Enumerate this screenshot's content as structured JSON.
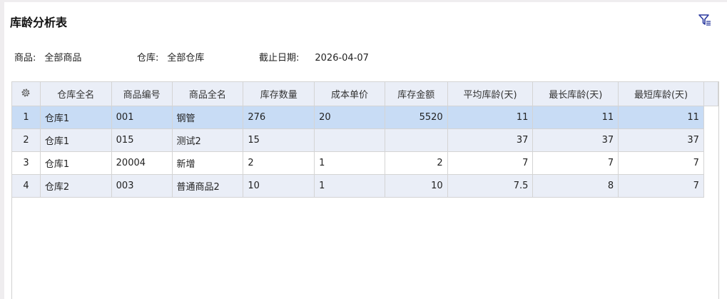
{
  "header": {
    "title": "库龄分析表",
    "filter_icon": "filter-list-icon",
    "accent": "#2b3a9f"
  },
  "criteria": [
    {
      "label": "商品:",
      "value": "全部商品"
    },
    {
      "label": "仓库:",
      "value": "全部仓库"
    },
    {
      "label": "截止日期:",
      "value": "2026-04-07"
    }
  ],
  "table": {
    "settings_icon": "gear-icon",
    "columns": [
      "仓库全名",
      "商品编号",
      "商品全名",
      "库存数量",
      "成本单价",
      "库存金额",
      "平均库龄(天)",
      "最长库龄(天)",
      "最短库龄(天)"
    ],
    "rows": [
      {
        "index": "1",
        "warehouse": "仓库1",
        "code": "001",
        "name": "钢管",
        "qty": "276",
        "unit_cost": "20",
        "amount": "5520",
        "avg_age": "11",
        "max_age": "11",
        "min_age": "11",
        "selected": true
      },
      {
        "index": "2",
        "warehouse": "仓库1",
        "code": "015",
        "name": "测试2",
        "qty": "15",
        "unit_cost": "",
        "amount": "",
        "avg_age": "37",
        "max_age": "37",
        "min_age": "37"
      },
      {
        "index": "3",
        "warehouse": "仓库1",
        "code": "20004",
        "name": "新增",
        "qty": "2",
        "unit_cost": "1",
        "amount": "2",
        "avg_age": "7",
        "max_age": "7",
        "min_age": "7"
      },
      {
        "index": "4",
        "warehouse": "仓库2",
        "code": "003",
        "name": "普通商品2",
        "qty": "10",
        "unit_cost": "1",
        "amount": "10",
        "avg_age": "7.5",
        "max_age": "8",
        "min_age": "7"
      }
    ]
  }
}
